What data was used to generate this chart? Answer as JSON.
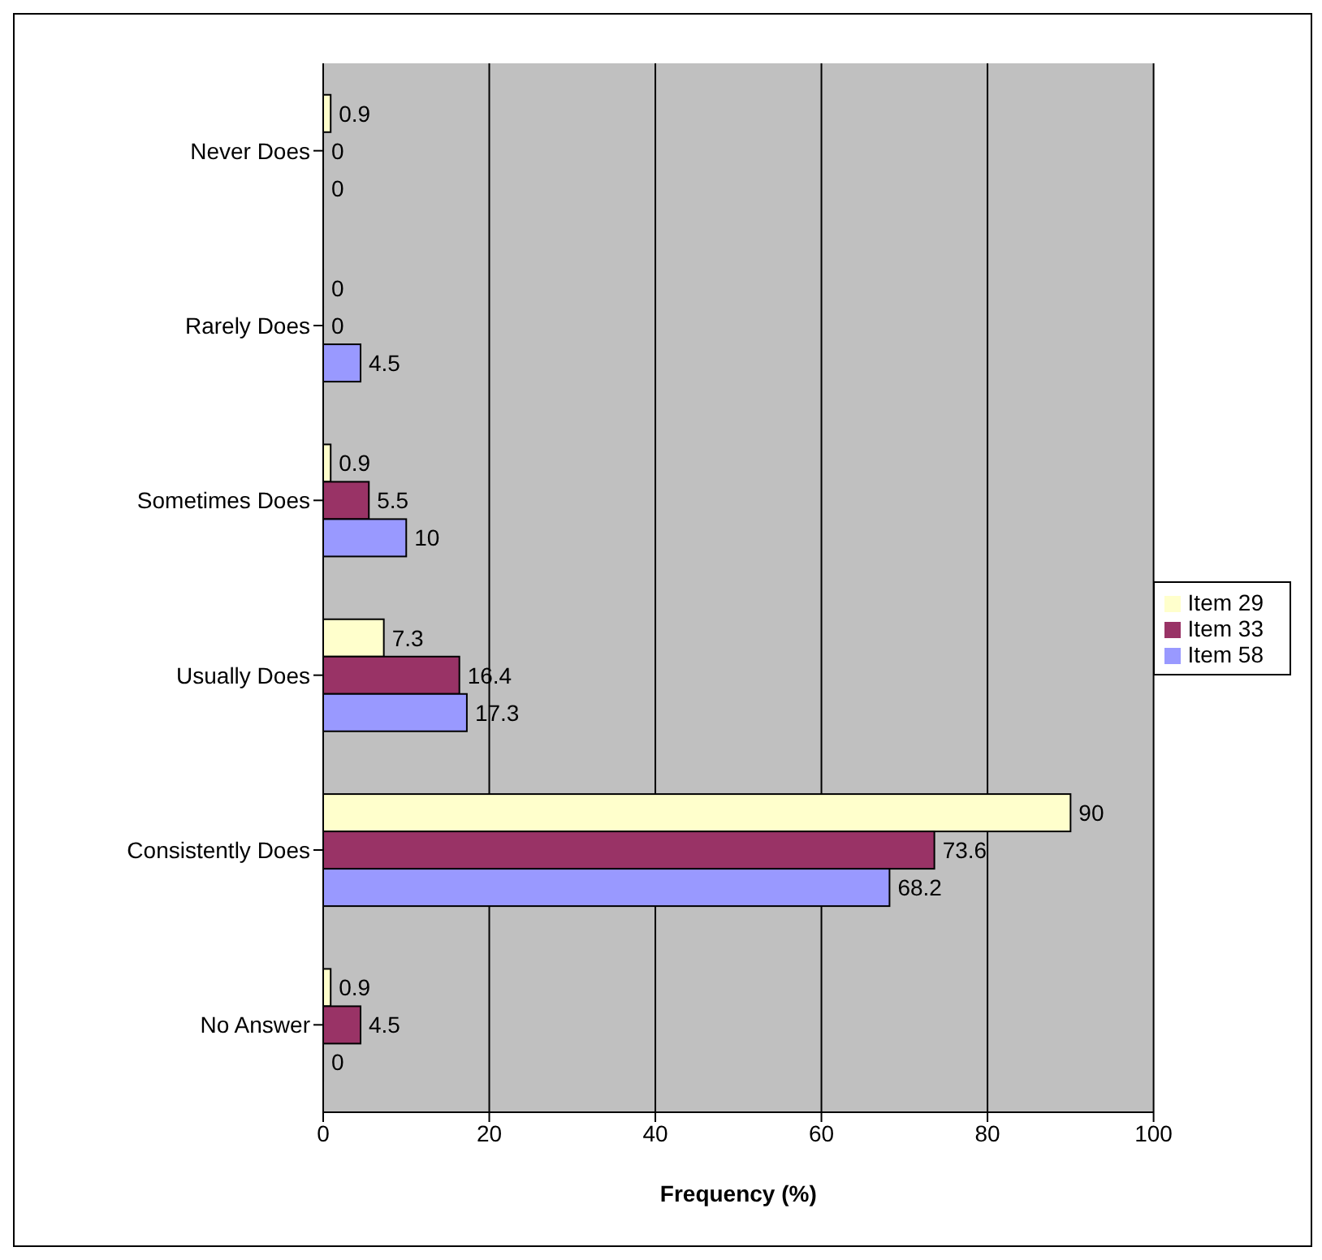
{
  "chart_data": {
    "type": "bar",
    "orientation": "horizontal",
    "xlabel": "Frequency (%)",
    "categories": [
      "Never Does",
      "Rarely Does",
      "Sometimes Does",
      "Usually Does",
      "Consistently Does",
      "No Answer"
    ],
    "series": [
      {
        "name": "Item 29",
        "color": "#ffffcc",
        "values": [
          0.9,
          0,
          0.9,
          7.3,
          90,
          0.9
        ]
      },
      {
        "name": "Item 33",
        "color": "#993366",
        "values": [
          0,
          0,
          5.5,
          16.4,
          73.6,
          4.5
        ]
      },
      {
        "name": "Item 58",
        "color": "#9999ff",
        "values": [
          0,
          4.5,
          10,
          17.3,
          68.2,
          0
        ]
      }
    ],
    "xlim": [
      0,
      100
    ],
    "xticks": [
      0,
      20,
      40,
      60,
      80,
      100
    ],
    "grid": "x",
    "legend": "right",
    "data_labels": true
  }
}
